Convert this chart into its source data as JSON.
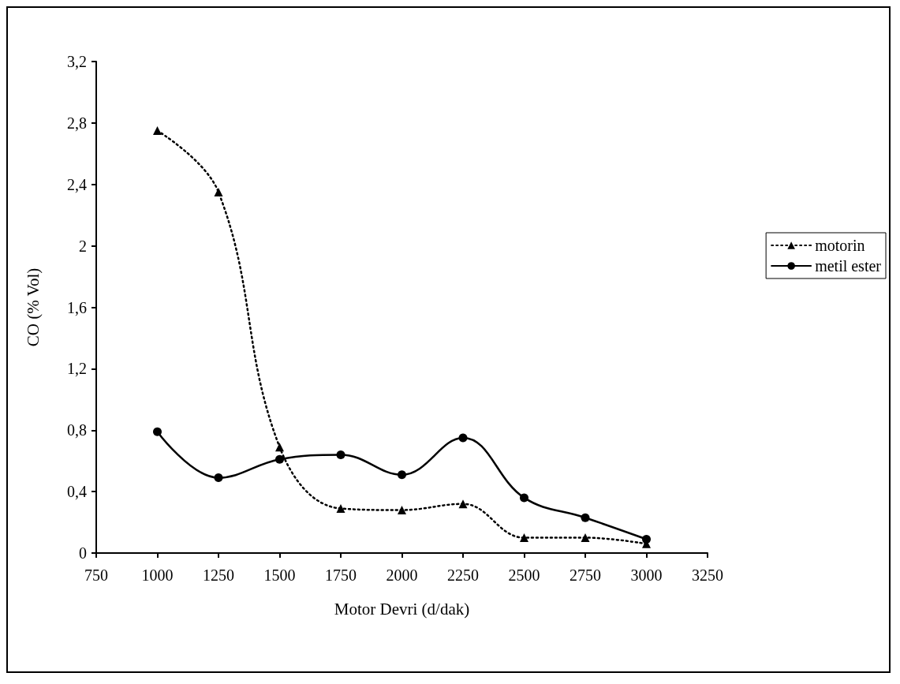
{
  "chart_data": {
    "type": "line",
    "xlabel": "Motor Devri (d/dak)",
    "ylabel": "CO (% Vol)",
    "x": [
      1000,
      1250,
      1500,
      1750,
      2000,
      2250,
      2500,
      2750,
      3000
    ],
    "series": [
      {
        "name": "motorin",
        "color": "#000000",
        "values": [
          2.75,
          2.35,
          0.69,
          0.29,
          0.28,
          0.32,
          0.1,
          0.1,
          0.06
        ],
        "marker": "triangle",
        "line_style": "dotted"
      },
      {
        "name": "metil ester",
        "color": "#000000",
        "values": [
          0.79,
          0.49,
          0.61,
          0.64,
          0.51,
          0.75,
          0.36,
          0.23,
          0.09
        ],
        "marker": "circle",
        "line_style": "solid"
      }
    ],
    "xlim": [
      750,
      3250
    ],
    "xticks": [
      750,
      1000,
      1250,
      1500,
      1750,
      2000,
      2250,
      2500,
      2750,
      3000,
      3250
    ],
    "ylim": [
      0,
      3.2
    ],
    "yticks": [
      0,
      {
        "value": 0.4,
        "label": "0,4"
      },
      {
        "value": 0.8,
        "label": "0,8"
      },
      {
        "value": 1.2,
        "label": "1,2"
      },
      {
        "value": 1.6,
        "label": "1,6"
      },
      2,
      {
        "value": 2.4,
        "label": "2,4"
      },
      {
        "value": 2.8,
        "label": "2,8"
      },
      {
        "value": 3.2,
        "label": "3,2"
      }
    ],
    "grid": false,
    "legend": "right"
  }
}
